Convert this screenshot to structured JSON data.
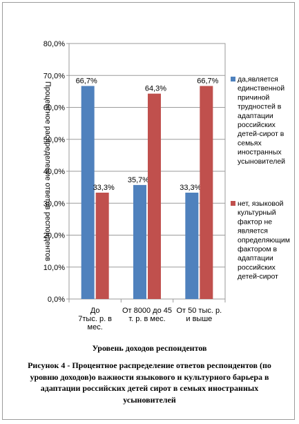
{
  "chart_data": {
    "type": "bar",
    "categories": [
      "До 7тыс. р. в мес.",
      "От 8000 до 45 т. р. в мес.",
      "От 50 тыс. р. и выше"
    ],
    "category_lines": [
      [
        "До",
        "7тыс. р. в",
        "мес."
      ],
      [
        "От 8000 до 45",
        "т. р. в мес."
      ],
      [
        "От 50 тыс. р.",
        "и выше"
      ]
    ],
    "series": [
      {
        "name": "да,является единственной причиной трудностей в адаптации российских детей-сирот в семьях иностранных усыновителей",
        "name_lines": [
          "да,является",
          "единственной",
          "причиной",
          "трудностей в",
          "адаптации",
          "российских",
          "детей-сирот в",
          "семьях",
          "иностранных",
          "усыновителей"
        ],
        "values": [
          66.7,
          35.7,
          33.3
        ],
        "labels": [
          "66,7%",
          "35,7%",
          "33,3%"
        ],
        "color": "#4f81bd"
      },
      {
        "name": "нет, языковой культурный фактор не является определяющим фактором в адаптации российских детей-сирот",
        "name_lines": [
          "нет, языковой",
          "культурный",
          "фактор не",
          "является",
          "определяющим",
          "фактором в",
          "адаптации",
          "российских",
          "детей-сирот"
        ],
        "values": [
          33.3,
          64.3,
          66.7
        ],
        "labels": [
          "33,3%",
          "64,3%",
          "66,7%"
        ],
        "color": "#c0504d"
      }
    ],
    "yticks": [
      0,
      10,
      20,
      30,
      40,
      50,
      60,
      70,
      80
    ],
    "ytick_labels": [
      "0,0%",
      "10,0%",
      "20,0%",
      "30,0%",
      "40,0%",
      "50,0%",
      "60,0%",
      "70,0%",
      "80,0%"
    ],
    "ylim": [
      0,
      80
    ],
    "ylabel": "Процентное распределение ответов респондентов",
    "xlabel": "Уровень доходов респондентов",
    "grid": true,
    "legend_position": "right"
  },
  "caption": "Рисунок 4 - Процентное распределение ответов респондентов (по уровню доходов)о важности языкового и культурного барьера в адаптации российских детей сирот в семьях иностранных усыновителей"
}
